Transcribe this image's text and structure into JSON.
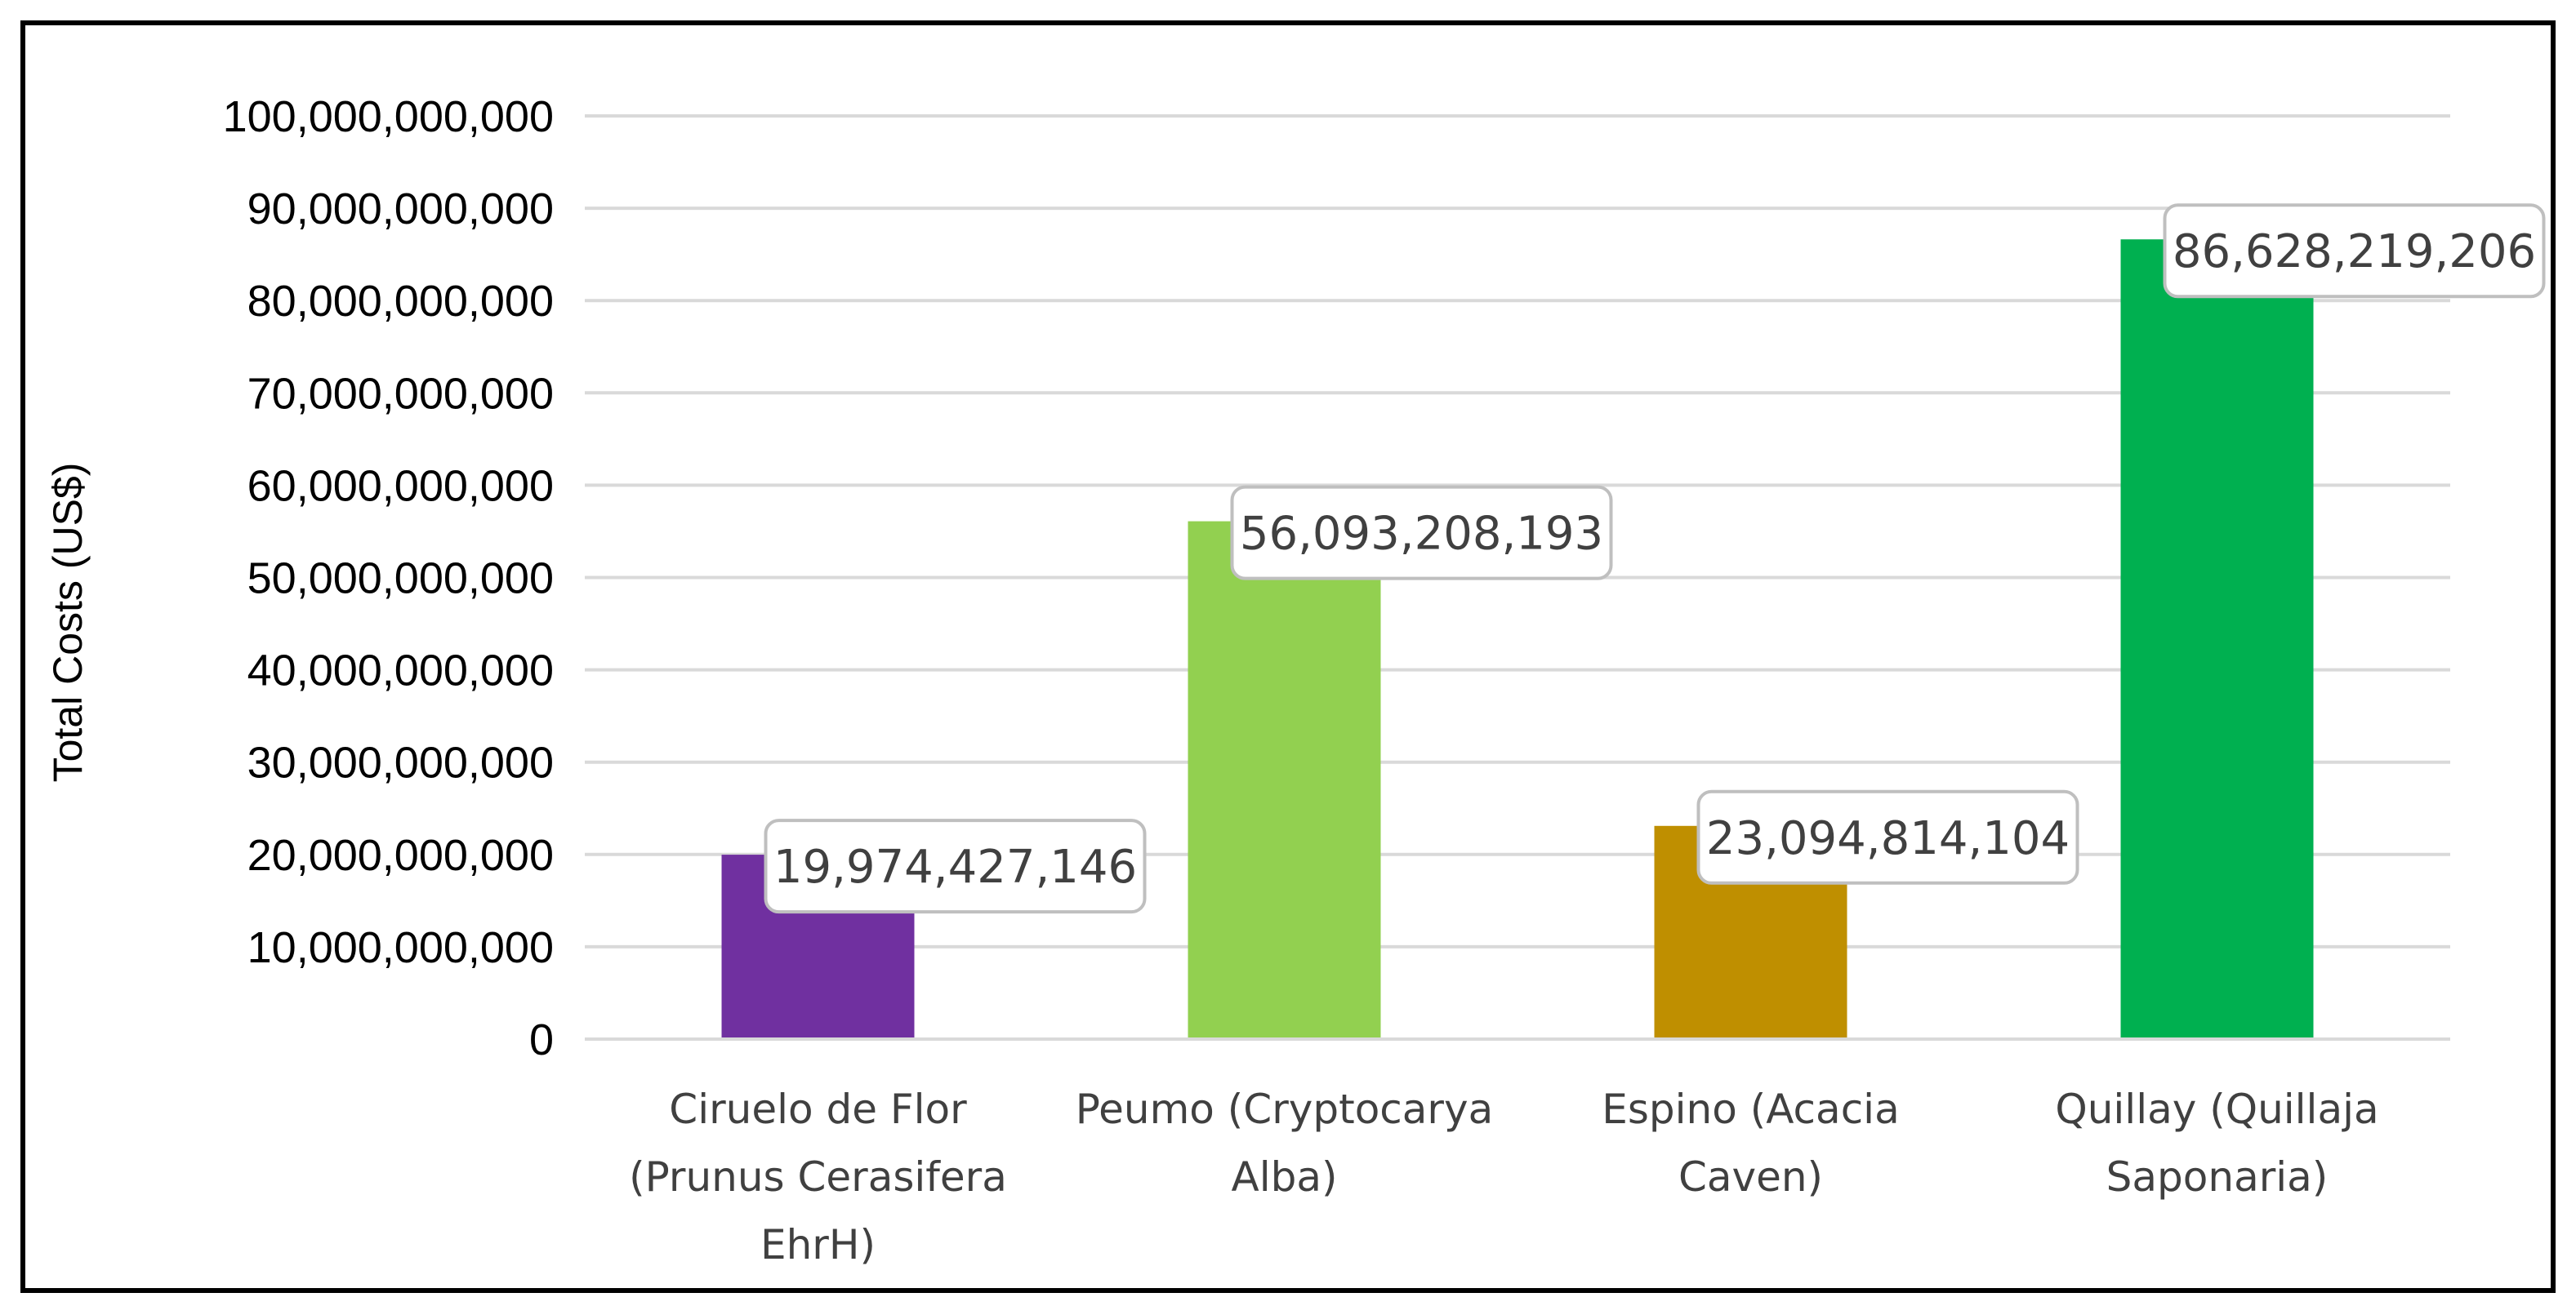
{
  "chart_data": {
    "type": "bar",
    "title": "",
    "xlabel": "",
    "ylabel": "Total Costs (US$)",
    "ylim": [
      0,
      100000000000
    ],
    "ytick_step": 10000000000,
    "grid": true,
    "legend": "none",
    "categories": [
      [
        "Ciruelo de Flor",
        "(Prunus Cerasifera",
        "EhrH)"
      ],
      [
        "Peumo (Cryptocarya",
        "Alba)"
      ],
      [
        "Espino (Acacia",
        "Caven)"
      ],
      [
        "Quillay (Quillaja",
        "Saponaria)"
      ]
    ],
    "values": [
      19974427146,
      56093208193,
      23094814104,
      86628219206
    ],
    "data_labels": [
      "19,974,427,146",
      "56,093,208,193",
      "23,094,814,104",
      "86,628,219,206"
    ],
    "colors": [
      "#7030a0",
      "#92d050",
      "#bf8f00",
      "#00b050"
    ]
  }
}
